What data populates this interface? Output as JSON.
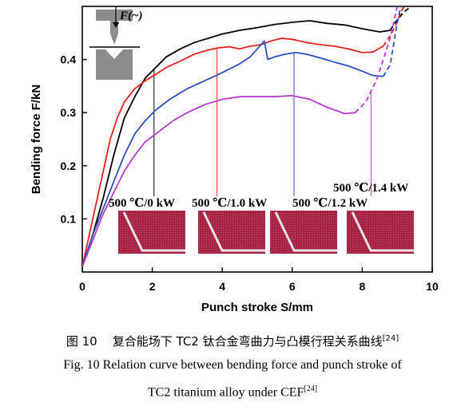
{
  "chart_data": {
    "type": "line",
    "title": "",
    "xlabel": "Punch stroke S/mm",
    "ylabel": "Bending force F/kN",
    "xlim": [
      0,
      10
    ],
    "ylim": [
      0,
      0.5
    ],
    "xticks": [
      "0",
      "2",
      "4",
      "6",
      "8",
      "10"
    ],
    "yticks": [
      "0.1",
      "0.2",
      "0.3",
      "0.4"
    ],
    "legend_icon_label": "F(~)",
    "series": [
      {
        "name": "500 ℃/0 kW",
        "color": "#000000",
        "x": [
          0,
          0.3,
          0.6,
          0.9,
          1.2,
          1.5,
          1.8,
          2.1,
          2.4,
          2.8,
          3.2,
          3.6,
          4.0,
          4.5,
          5.0,
          5.5,
          6.0,
          6.5,
          7.0,
          7.5,
          8.0,
          8.5,
          8.8,
          9.0,
          9.2,
          9.4
        ],
        "y": [
          0.01,
          0.07,
          0.14,
          0.22,
          0.29,
          0.33,
          0.365,
          0.385,
          0.405,
          0.42,
          0.432,
          0.44,
          0.448,
          0.455,
          0.46,
          0.466,
          0.47,
          0.473,
          0.468,
          0.465,
          0.458,
          0.452,
          0.455,
          0.475,
          0.49,
          0.5
        ]
      },
      {
        "name": "500 ℃/1.0 kW",
        "color": "#e8211d",
        "x": [
          0,
          0.3,
          0.6,
          0.8,
          1.0,
          1.2,
          1.5,
          1.8,
          2.1,
          2.4,
          2.8,
          3.2,
          3.6,
          3.9,
          4.2,
          4.5,
          4.8,
          5.1,
          5.4,
          5.7,
          6.0,
          6.4,
          6.8,
          7.2,
          7.6,
          8.0,
          8.3,
          8.6,
          8.8,
          9.0,
          9.1,
          9.2
        ],
        "y": [
          0.01,
          0.1,
          0.19,
          0.25,
          0.29,
          0.32,
          0.345,
          0.36,
          0.372,
          0.385,
          0.397,
          0.41,
          0.418,
          0.422,
          0.424,
          0.42,
          0.425,
          0.428,
          0.435,
          0.44,
          0.438,
          0.432,
          0.428,
          0.425,
          0.42,
          0.413,
          0.414,
          0.425,
          0.445,
          0.47,
          0.49,
          0.5
        ]
      },
      {
        "name": "500 ℃/1.2 kW",
        "color": "#2e4fba",
        "x": [
          0,
          0.3,
          0.6,
          0.9,
          1.2,
          1.5,
          1.8,
          2.1,
          2.5,
          3.0,
          3.5,
          3.9,
          4.2,
          4.5,
          4.8,
          5.0,
          5.2,
          5.3,
          5.5,
          5.8,
          6.1,
          6.4,
          6.8,
          7.2,
          7.6,
          8.0,
          8.3,
          8.6,
          8.8,
          8.9,
          9.0,
          9.1
        ],
        "y": [
          0.01,
          0.07,
          0.12,
          0.17,
          0.22,
          0.26,
          0.285,
          0.305,
          0.325,
          0.345,
          0.36,
          0.372,
          0.382,
          0.392,
          0.405,
          0.42,
          0.435,
          0.4,
          0.405,
          0.41,
          0.413,
          0.41,
          0.403,
          0.395,
          0.388,
          0.378,
          0.37,
          0.368,
          0.39,
          0.43,
          0.47,
          0.5
        ]
      },
      {
        "name": "500 ℃/1.4 kW",
        "color": "#b43cc8",
        "x": [
          0,
          0.3,
          0.6,
          0.9,
          1.2,
          1.5,
          1.8,
          2.2,
          2.6,
          3.0,
          3.5,
          4.0,
          4.5,
          5.0,
          5.5,
          6.0,
          6.5,
          7.0,
          7.5,
          7.8,
          8.1,
          8.4,
          8.6,
          8.8,
          9.0
        ],
        "y": [
          0.01,
          0.06,
          0.11,
          0.15,
          0.19,
          0.22,
          0.245,
          0.265,
          0.285,
          0.3,
          0.315,
          0.325,
          0.33,
          0.33,
          0.33,
          0.332,
          0.325,
          0.31,
          0.298,
          0.3,
          0.32,
          0.36,
          0.4,
          0.44,
          0.5
        ]
      }
    ],
    "markers": [
      {
        "label": "500 ℃/0 kW",
        "x": 2.05,
        "color": "#000000"
      },
      {
        "label": "500 ℃/1.0 kW",
        "x": 3.85,
        "color": "#e8211d"
      },
      {
        "label": "500 ℃/1.2 kW",
        "x": 6.05,
        "color": "#2e4fba"
      },
      {
        "label": "500 ℃/1.4 kW",
        "x": 8.25,
        "color": "#b43cc8"
      }
    ],
    "inset_photo_color": "#a51f40"
  },
  "caption": {
    "cn_prefix": "图 10",
    "cn_text": "复合能场下 TC2 钛合金弯曲力与凸模行程关系曲线",
    "cn_ref": "[24]",
    "en_line1": "Fig. 10   Relation curve between bending force and punch stroke of",
    "en_line2": "TC2 titanium alloy under CEF",
    "en_ref": "[24]"
  }
}
